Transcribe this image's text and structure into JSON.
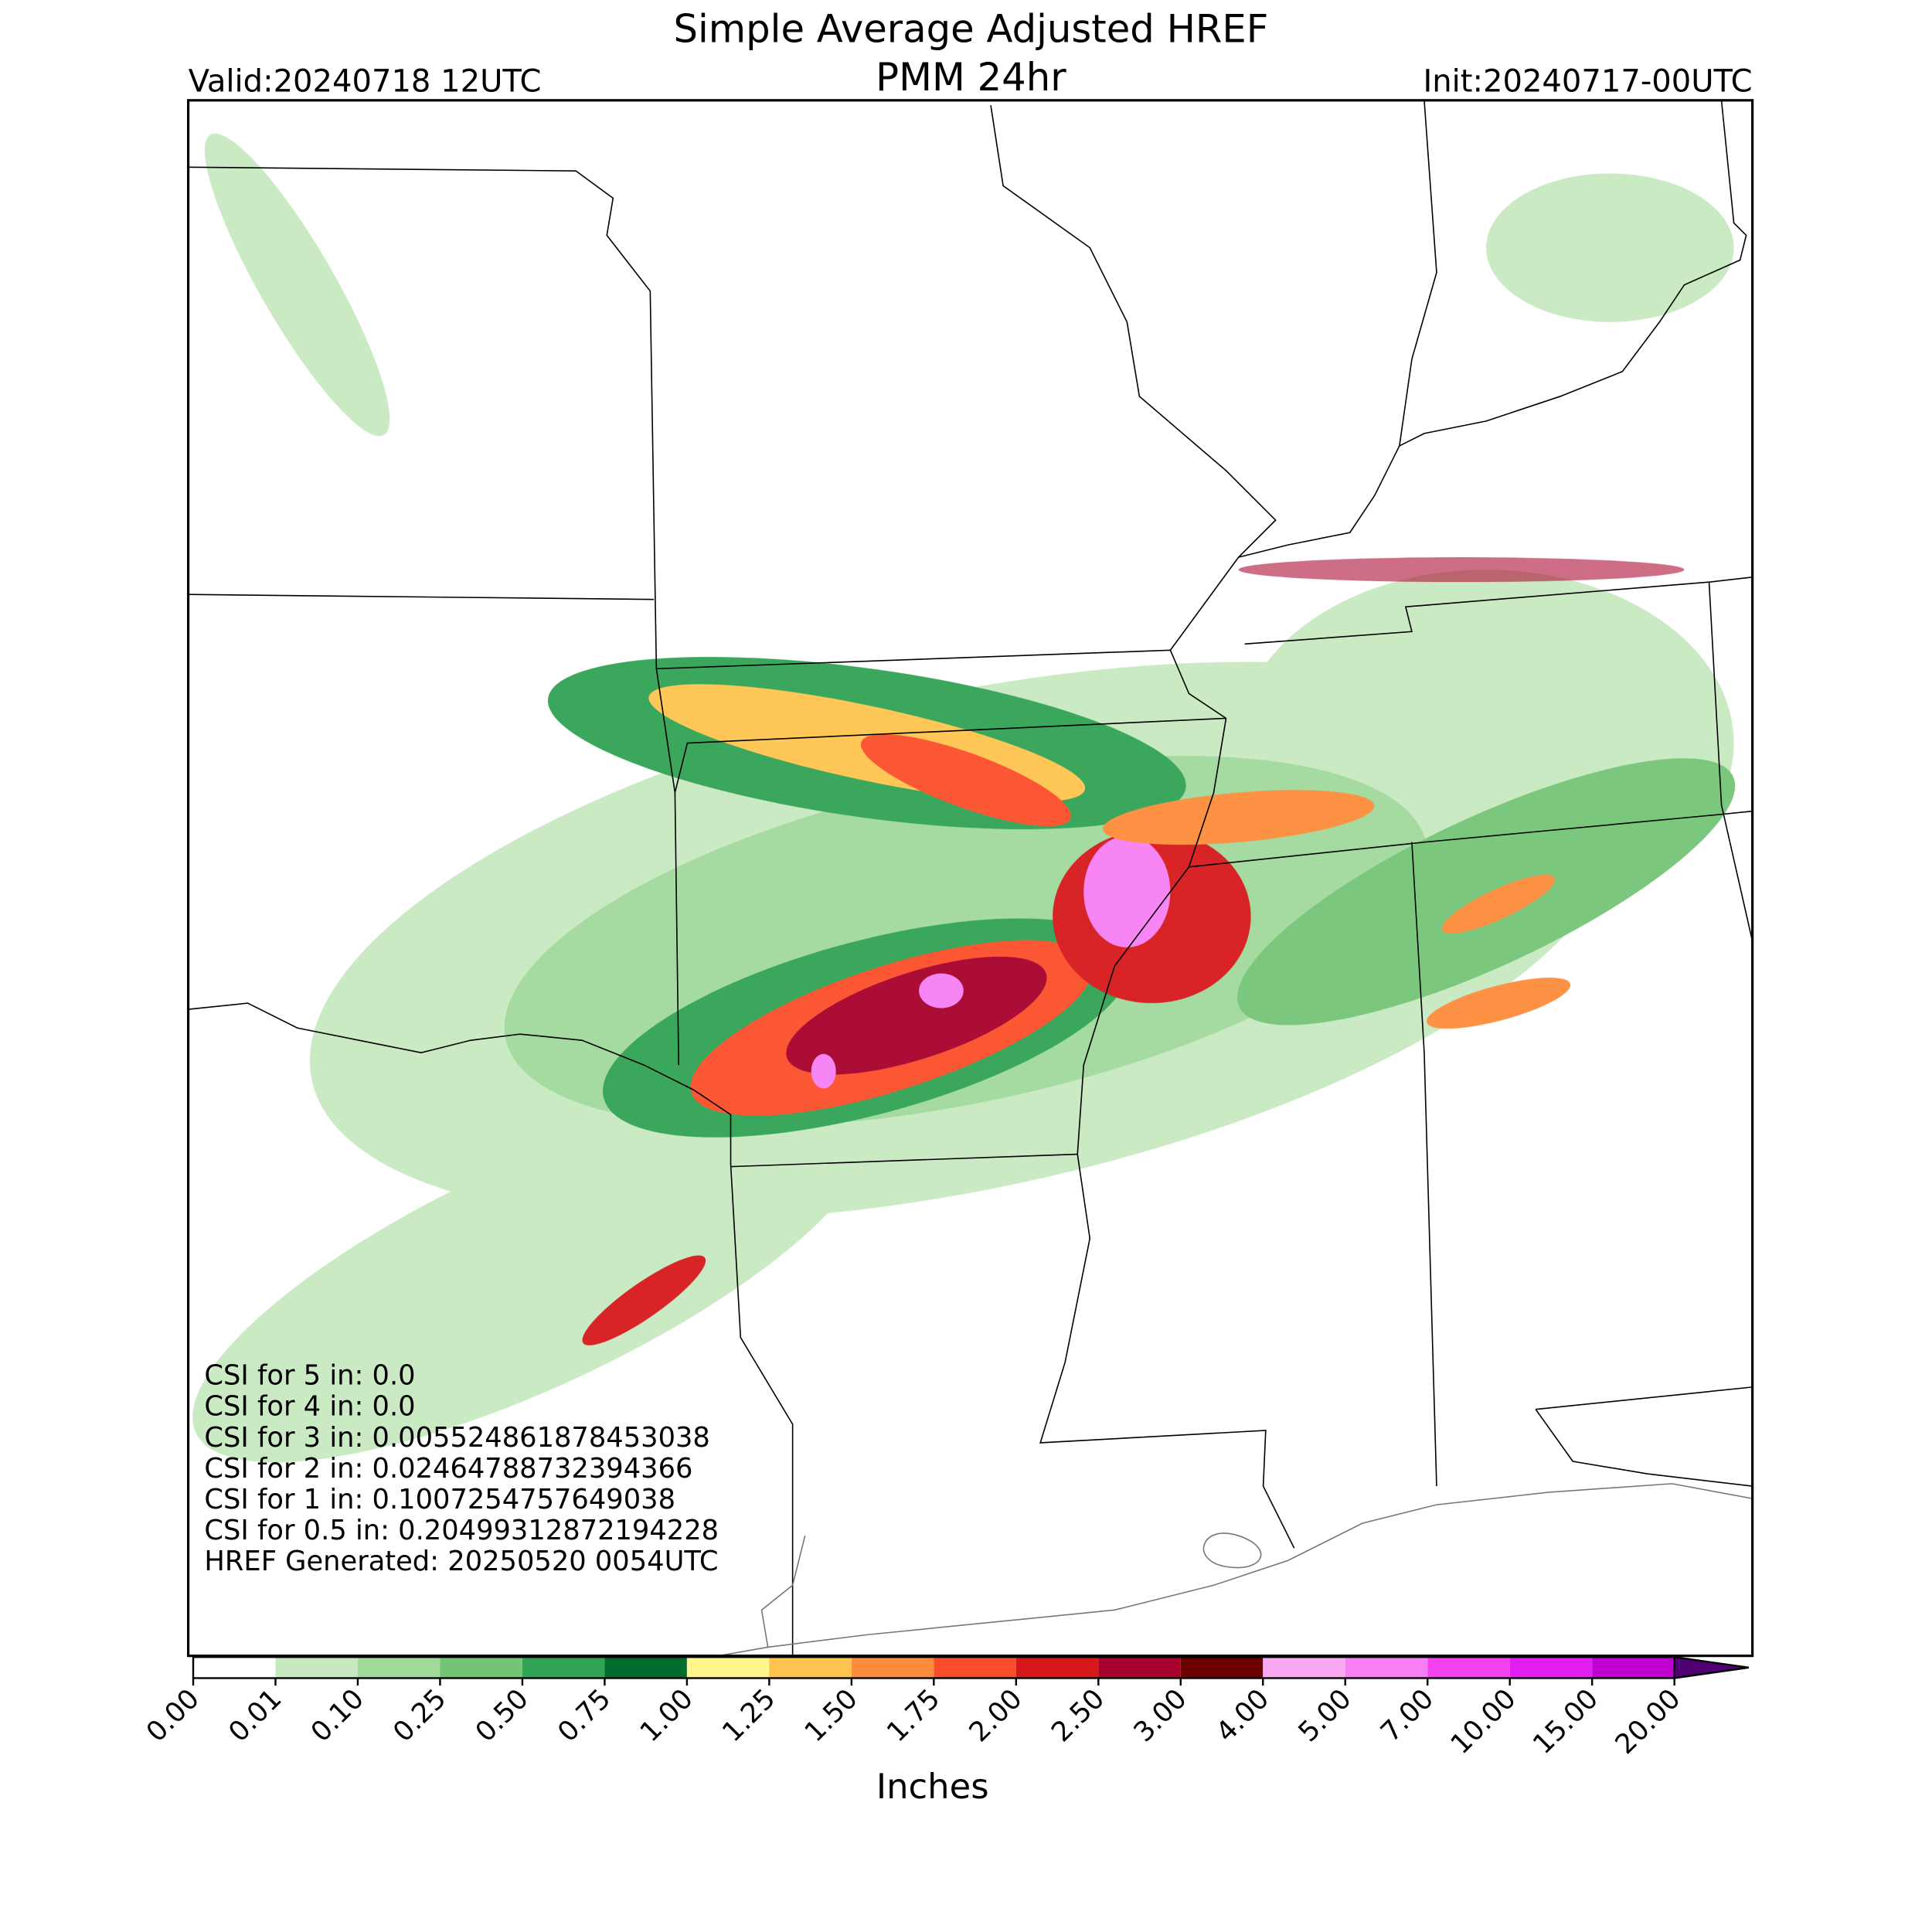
{
  "header": {
    "title": "Simple Average Adjusted HREF",
    "subtitle": "PMM 24hr",
    "valid": "Valid:20240718 12UTC",
    "init": "Init:20240717-00UTC"
  },
  "stats": {
    "lines": [
      "CSI for 5 in: 0.0",
      "CSI for 4 in: 0.0",
      "CSI for 3 in: 0.005524861878453038",
      "CSI for 2 in: 0.02464788732394366",
      "CSI for 1 in: 0.1007254757649038",
      "CSI for 0.5 in: 0.20499312872194228",
      "HREF Generated: 20250520 0054UTC"
    ]
  },
  "colorbar": {
    "label": "Inches",
    "boundaries": [
      {
        "value": 0,
        "label": "0.00"
      },
      {
        "value": 0.01,
        "label": "0.01"
      },
      {
        "value": 0.1,
        "label": "0.10"
      },
      {
        "value": 0.25,
        "label": "0.25"
      },
      {
        "value": 0.5,
        "label": "0.50"
      },
      {
        "value": 0.75,
        "label": "0.75"
      },
      {
        "value": 1,
        "label": "1.00"
      },
      {
        "value": 1.25,
        "label": "1.25"
      },
      {
        "value": 1.5,
        "label": "1.50"
      },
      {
        "value": 1.75,
        "label": "1.75"
      },
      {
        "value": 2,
        "label": "2.00"
      },
      {
        "value": 2.5,
        "label": "2.50"
      },
      {
        "value": 3,
        "label": "3.00"
      },
      {
        "value": 4,
        "label": "4.00"
      },
      {
        "value": 5,
        "label": "5.00"
      },
      {
        "value": 7,
        "label": "7.00"
      },
      {
        "value": 10,
        "label": "10.00"
      },
      {
        "value": 15,
        "label": "15.00"
      },
      {
        "value": 20,
        "label": "20.00"
      }
    ],
    "colors": [
      "#ffffff",
      "#c7e9c0",
      "#a1d99b",
      "#74c476",
      "#31a354",
      "#006d2c",
      "#fff68f",
      "#ffc44f",
      "#fd8d3c",
      "#fc4e2a",
      "#d7191c",
      "#a8002c",
      "#6b0000",
      "#f9a8f2",
      "#f77ff3",
      "#f542f0",
      "#e21ef0",
      "#c000d0",
      "#8800c8"
    ],
    "extend_color": "#500070"
  }
}
